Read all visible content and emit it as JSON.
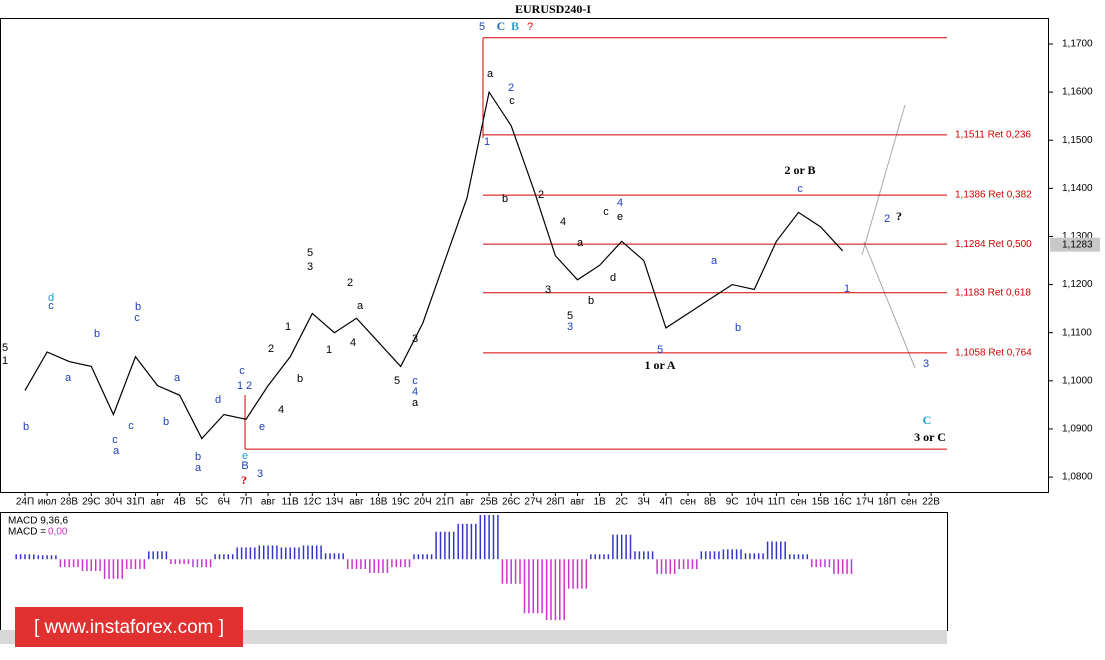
{
  "chart_data": {
    "type": "line",
    "title": "EURUSD240-I",
    "categories": [
      "24П",
      "июл",
      "28В",
      "29С",
      "30Ч",
      "31П",
      "авг",
      "4В",
      "5С",
      "6Ч",
      "7П",
      "авг",
      "11В",
      "12С",
      "13Ч",
      "авг",
      "18В",
      "19С",
      "20Ч",
      "21П",
      "авг",
      "25В",
      "26С",
      "27Ч",
      "28П",
      "авг",
      "1В",
      "2С",
      "3Ч",
      "4П",
      "сен",
      "8В",
      "9С",
      "10Ч",
      "11П",
      "сен",
      "15В",
      "16С",
      "17Ч",
      "18П",
      "сен",
      "22В"
    ],
    "values": [
      1.098,
      1.106,
      1.104,
      1.103,
      1.093,
      1.105,
      1.099,
      1.097,
      1.088,
      1.093,
      1.092,
      1.099,
      1.105,
      1.114,
      1.11,
      1.113,
      1.108,
      1.103,
      1.112,
      1.125,
      1.138,
      1.16,
      1.153,
      1.14,
      1.126,
      1.121,
      1.124,
      1.129,
      1.125,
      1.111,
      1.114,
      1.117,
      1.12,
      1.119,
      1.129,
      1.135,
      1.132,
      1.127,
      null,
      null,
      null,
      null
    ],
    "color": "#000000",
    "ylim": [
      1.0769,
      1.1754
    ],
    "yticks": [
      {
        "value": 1.08,
        "label": "1,0800"
      },
      {
        "value": 1.09,
        "label": "1,0900"
      },
      {
        "value": 1.1,
        "label": "1,1000"
      },
      {
        "value": 1.11,
        "label": "1,1100"
      },
      {
        "value": 1.12,
        "label": "1,1200"
      },
      {
        "value": 1.13,
        "label": "1,1300"
      },
      {
        "value": 1.14,
        "label": "1,1400"
      },
      {
        "value": 1.15,
        "label": "1,1500"
      },
      {
        "value": 1.16,
        "label": "1,1600"
      },
      {
        "value": 1.17,
        "label": "1,1700"
      }
    ],
    "last_price": {
      "value": 1.1283,
      "label": "1,1283"
    },
    "levels": [
      {
        "value": 1.1511,
        "label": "1,1511 Ret 0,236"
      },
      {
        "value": 1.1386,
        "label": "1,1386 Ret 0,382"
      },
      {
        "value": 1.1284,
        "label": "1,1284 Ret 0,500"
      },
      {
        "value": 1.1183,
        "label": "1,1183 Ret 0,618"
      },
      {
        "value": 1.1058,
        "label": "1,1058 Ret 0,764"
      }
    ],
    "boundary_lines": [
      1.1713,
      1.0858
    ],
    "level_color": "#d00000",
    "annotations": [
      {
        "text": "5",
        "color": "#1f3fbf"
      },
      {
        "text": "C",
        "color": "#1a6fb0"
      },
      {
        "text": "B",
        "color": "#2a9fd0"
      },
      {
        "text": "?",
        "color": "#e00000"
      },
      {
        "text": "2 or B",
        "color": "#000000"
      },
      {
        "text": "c",
        "color": "#1f3fbf"
      },
      {
        "text": "1 or A",
        "color": "#000000"
      },
      {
        "text": "5",
        "color": "#1f3fbf"
      },
      {
        "text": "3 or C",
        "color": "#000000"
      },
      {
        "text": "C",
        "color": "#1aa0d0"
      },
      {
        "text": "3",
        "color": "#1f3fbf"
      },
      {
        "text": "2",
        "color": "#1f3fbf"
      },
      {
        "text": "?",
        "color": "#000000"
      },
      {
        "text": "1",
        "color": "#1f3fbf"
      },
      {
        "text": "a",
        "color": "#1f3fbf"
      },
      {
        "text": "b",
        "color": "#1f3fbf"
      },
      {
        "text": "4",
        "color": "#1f3fbf"
      },
      {
        "text": "e",
        "color": "#000000"
      },
      {
        "text": "c",
        "color": "#000000"
      },
      {
        "text": "3",
        "color": "#1f3fbf"
      },
      {
        "text": "5",
        "color": "#000000"
      },
      {
        "text": "2",
        "color": "#1f3fbf"
      },
      {
        "text": "c",
        "color": "#000000"
      },
      {
        "text": "a",
        "color": "#000000"
      },
      {
        "text": "1",
        "color": "#1f3fbf"
      },
      {
        "text": "b",
        "color": "#000000"
      },
      {
        "text": "2",
        "color": "#000000"
      },
      {
        "text": "4",
        "color": "#000000"
      },
      {
        "text": "3",
        "color": "#000000"
      },
      {
        "text": "d",
        "color": "#000000"
      },
      {
        "text": "a",
        "color": "#000000"
      },
      {
        "text": "b",
        "color": "#000000"
      },
      {
        "text": "d",
        "color": "#1aa0d0"
      },
      {
        "text": "c",
        "color": "#1f3fbf"
      },
      {
        "text": "a",
        "color": "#1f3fbf"
      },
      {
        "text": "b",
        "color": "#1f3fbf"
      },
      {
        "text": "b",
        "color": "#1f3fbf"
      },
      {
        "text": "c",
        "color": "#1f3fbf"
      },
      {
        "text": "a",
        "color": "#1f3fbf"
      },
      {
        "text": "b",
        "color": "#1f3fbf"
      },
      {
        "text": "c",
        "color": "#1f3fbf"
      },
      {
        "text": "a",
        "color": "#1f3fbf"
      },
      {
        "text": "b",
        "color": "#1f3fbf"
      },
      {
        "text": "c",
        "color": "#1f3fbf"
      },
      {
        "text": "b",
        "color": "#1f3fbf"
      },
      {
        "text": "a",
        "color": "#1f3fbf"
      },
      {
        "text": "d",
        "color": "#1f3fbf"
      },
      {
        "text": "c",
        "color": "#1f3fbf"
      },
      {
        "text": "1",
        "color": "#1f3fbf"
      },
      {
        "text": "2",
        "color": "#1f3fbf"
      },
      {
        "text": "e",
        "color": "#1f3fbf"
      },
      {
        "text": "e",
        "color": "#1aa0d0"
      },
      {
        "text": "B",
        "color": "#1f3fbf"
      },
      {
        "text": "?",
        "color": "#e00000"
      },
      {
        "text": "3",
        "color": "#1f3fbf"
      },
      {
        "text": "5",
        "color": "#000000"
      },
      {
        "text": "3",
        "color": "#000000"
      },
      {
        "text": "1",
        "color": "#000000"
      },
      {
        "text": "2",
        "color": "#000000"
      },
      {
        "text": "4",
        "color": "#000000"
      },
      {
        "text": "b",
        "color": "#000000"
      },
      {
        "text": "2",
        "color": "#000000"
      },
      {
        "text": "a",
        "color": "#000000"
      },
      {
        "text": "1",
        "color": "#000000"
      },
      {
        "text": "4",
        "color": "#000000"
      },
      {
        "text": "3",
        "color": "#000000"
      },
      {
        "text": "5",
        "color": "#000000"
      },
      {
        "text": "c",
        "color": "#1f3fbf"
      },
      {
        "text": "4",
        "color": "#1f3fbf"
      },
      {
        "text": "a",
        "color": "#000000"
      },
      {
        "text": "5",
        "color": "#000000"
      },
      {
        "text": "1",
        "color": "#000000"
      }
    ],
    "macd": {
      "title": "MACD 9,36,6",
      "label": "MACD =",
      "value_label": "0,00",
      "positive_color": "#3333cc",
      "negative_color": "#cc33cc",
      "values": [
        5,
        4,
        -8,
        -12,
        -20,
        -10,
        8,
        -5,
        -8,
        5,
        12,
        14,
        12,
        14,
        6,
        -10,
        -14,
        -8,
        5,
        28,
        36,
        45,
        -25,
        -55,
        -62,
        -30,
        5,
        25,
        8,
        -15,
        -10,
        8,
        10,
        6,
        18,
        5,
        -8,
        -15,
        null,
        null,
        null,
        null
      ],
      "ylim": [
        -70,
        45
      ]
    },
    "watermark": "[ www.instaforex.com ]"
  }
}
